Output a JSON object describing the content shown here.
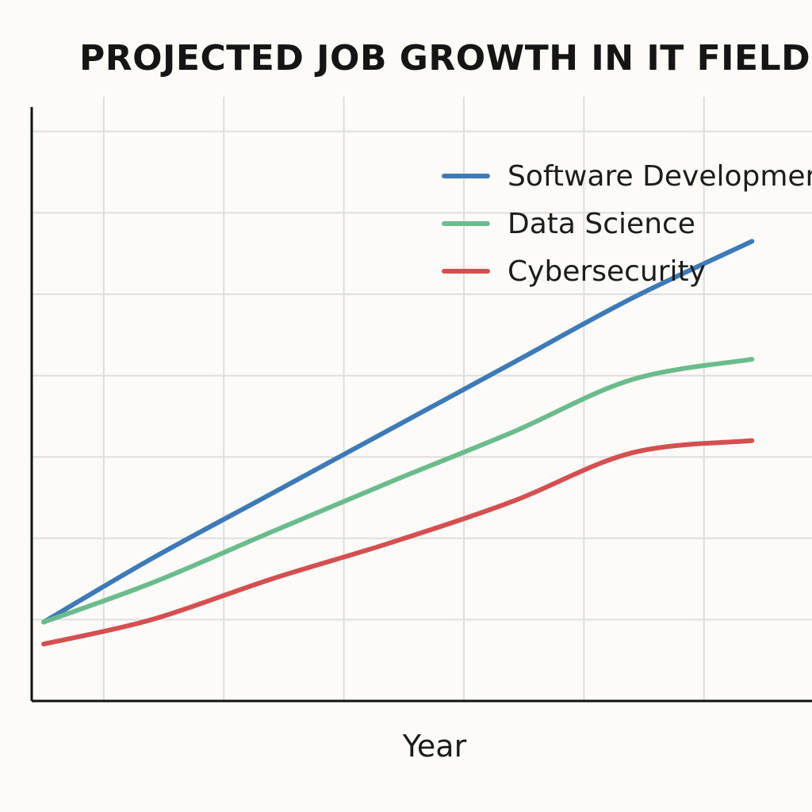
{
  "chart_data": {
    "type": "line",
    "title": "PROJECTED JOB GROWTH IN IT FIELD?",
    "xlabel": "Year",
    "ylabel": "",
    "xlim": [
      0,
      6.5
    ],
    "ylim": [
      0,
      7.3
    ],
    "x": [
      0.1,
      1,
      2,
      3,
      4,
      5,
      6
    ],
    "grid": true,
    "legend": "top-right",
    "series": [
      {
        "name": "Software Developmer",
        "color": "#3d7ab7",
        "values": [
          0.97,
          1.75,
          2.55,
          3.35,
          4.15,
          4.95,
          5.65
        ]
      },
      {
        "name": "Data Science",
        "color": "#6bbc8d",
        "values": [
          0.97,
          1.45,
          2.08,
          2.7,
          3.3,
          3.95,
          4.2
        ]
      },
      {
        "name": "Cybersecurity",
        "color": "#d45050",
        "values": [
          0.7,
          1.0,
          1.5,
          1.95,
          2.45,
          3.05,
          3.2
        ]
      }
    ]
  }
}
